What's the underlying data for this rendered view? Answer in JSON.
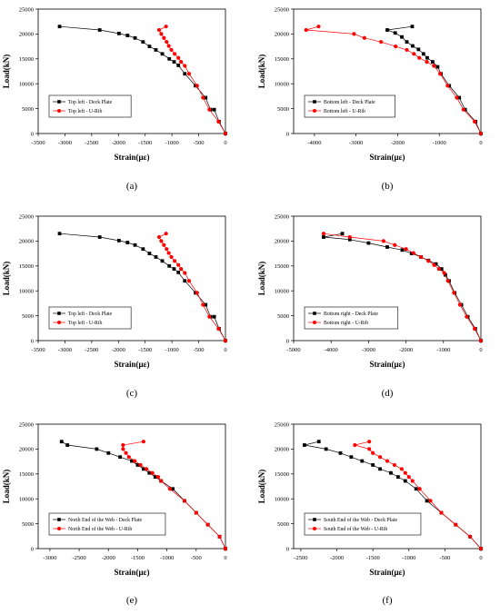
{
  "chart_data": [
    {
      "id": "a",
      "panel_label": "(a)",
      "type": "line",
      "xlabel": "Strain(με)",
      "ylabel": "Load(kN)",
      "xlim": [
        -3500,
        0
      ],
      "ylim": [
        0,
        25000
      ],
      "xticks": [
        -3500,
        -3000,
        -2500,
        -2000,
        -1500,
        -1000,
        -500,
        0
      ],
      "yticks": [
        0,
        5000,
        10000,
        15000,
        20000,
        25000
      ],
      "legend": "middle-left",
      "series": [
        {
          "name": "Top left - Deck Plate",
          "color": "#000000",
          "marker": "square",
          "points": [
            [
              0,
              0
            ],
            [
              -120,
              2400
            ],
            [
              -210,
              4800
            ],
            [
              -280,
              4800
            ],
            [
              -370,
              7200
            ],
            [
              -560,
              9600
            ],
            [
              -760,
              12000
            ],
            [
              -880,
              13700
            ],
            [
              -960,
              14400
            ],
            [
              -1050,
              15000
            ],
            [
              -1180,
              16000
            ],
            [
              -1300,
              16800
            ],
            [
              -1420,
              17500
            ],
            [
              -1540,
              18400
            ],
            [
              -1690,
              19200
            ],
            [
              -1830,
              19700
            ],
            [
              -1990,
              20100
            ],
            [
              -2350,
              20800
            ],
            [
              -3100,
              21500
            ]
          ]
        },
        {
          "name": "Top left - U-Rib",
          "color": "#ff0000",
          "marker": "circle",
          "points": [
            [
              0,
              0
            ],
            [
              -130,
              2400
            ],
            [
              -300,
              4800
            ],
            [
              -420,
              7200
            ],
            [
              -530,
              9600
            ],
            [
              -680,
              12000
            ],
            [
              -760,
              13600
            ],
            [
              -830,
              14400
            ],
            [
              -880,
              15200
            ],
            [
              -950,
              16000
            ],
            [
              -1010,
              16800
            ],
            [
              -1060,
              17600
            ],
            [
              -1100,
              18400
            ],
            [
              -1150,
              19200
            ],
            [
              -1200,
              20000
            ],
            [
              -1240,
              20800
            ],
            [
              -1110,
              21500
            ]
          ]
        }
      ]
    },
    {
      "id": "b",
      "panel_label": "(b)",
      "type": "line",
      "xlabel": "Strain(με)",
      "ylabel": "Load(kN)",
      "xlim": [
        -4500,
        0
      ],
      "ylim": [
        0,
        25000
      ],
      "xticks": [
        -4000,
        -3000,
        -2000,
        -1000,
        0
      ],
      "yticks": [
        0,
        5000,
        10000,
        15000,
        20000,
        25000
      ],
      "legend": "middle-left",
      "series": [
        {
          "name": "Bottom left - Deck Plate",
          "color": "#000000",
          "marker": "square",
          "points": [
            [
              0,
              0
            ],
            [
              -130,
              2400
            ],
            [
              -380,
              4800
            ],
            [
              -520,
              7200
            ],
            [
              -760,
              9600
            ],
            [
              -960,
              12000
            ],
            [
              -1040,
              13400
            ],
            [
              -1160,
              14400
            ],
            [
              -1290,
              15200
            ],
            [
              -1380,
              16000
            ],
            [
              -1500,
              16900
            ],
            [
              -1640,
              17600
            ],
            [
              -1780,
              18400
            ],
            [
              -1900,
              19400
            ],
            [
              -2060,
              20200
            ],
            [
              -2250,
              20800
            ],
            [
              -1650,
              21500
            ]
          ]
        },
        {
          "name": "Bottom left - U-Rib",
          "color": "#ff0000",
          "marker": "circle",
          "points": [
            [
              0,
              0
            ],
            [
              -150,
              2400
            ],
            [
              -420,
              4800
            ],
            [
              -580,
              7200
            ],
            [
              -800,
              9600
            ],
            [
              -980,
              12000
            ],
            [
              -1130,
              13600
            ],
            [
              -1300,
              14400
            ],
            [
              -1480,
              15200
            ],
            [
              -1610,
              16000
            ],
            [
              -1780,
              16800
            ],
            [
              -2050,
              17500
            ],
            [
              -2400,
              18400
            ],
            [
              -2800,
              19200
            ],
            [
              -3050,
              20000
            ],
            [
              -4200,
              20800
            ],
            [
              -3900,
              21500
            ]
          ]
        }
      ]
    },
    {
      "id": "c",
      "panel_label": "(c)",
      "type": "line",
      "xlabel": "Strain(με)",
      "ylabel": "Load(kN)",
      "xlim": [
        -3500,
        0
      ],
      "ylim": [
        0,
        25000
      ],
      "xticks": [
        -3500,
        -3000,
        -2500,
        -2000,
        -1500,
        -1000,
        -500,
        0
      ],
      "yticks": [
        0,
        5000,
        10000,
        15000,
        20000,
        25000
      ],
      "legend": "lower-left",
      "series": [
        {
          "name": "Top left - Deck Plate",
          "color": "#000000",
          "marker": "square",
          "points": [
            [
              0,
              0
            ],
            [
              -120,
              2400
            ],
            [
              -210,
              4800
            ],
            [
              -280,
              4800
            ],
            [
              -370,
              7200
            ],
            [
              -560,
              9600
            ],
            [
              -760,
              12000
            ],
            [
              -880,
              13700
            ],
            [
              -960,
              14400
            ],
            [
              -1050,
              15000
            ],
            [
              -1180,
              16000
            ],
            [
              -1300,
              16800
            ],
            [
              -1420,
              17500
            ],
            [
              -1540,
              18400
            ],
            [
              -1690,
              19200
            ],
            [
              -1830,
              19700
            ],
            [
              -1990,
              20100
            ],
            [
              -2350,
              20800
            ],
            [
              -3100,
              21500
            ]
          ]
        },
        {
          "name": "Top left - U-Rib",
          "color": "#ff0000",
          "marker": "circle",
          "points": [
            [
              0,
              0
            ],
            [
              -130,
              2400
            ],
            [
              -300,
              4800
            ],
            [
              -420,
              7200
            ],
            [
              -530,
              9600
            ],
            [
              -680,
              12000
            ],
            [
              -760,
              13600
            ],
            [
              -830,
              14400
            ],
            [
              -880,
              15200
            ],
            [
              -950,
              16000
            ],
            [
              -1010,
              16800
            ],
            [
              -1060,
              17600
            ],
            [
              -1100,
              18400
            ],
            [
              -1150,
              19200
            ],
            [
              -1200,
              20000
            ],
            [
              -1240,
              20800
            ],
            [
              -1110,
              21500
            ]
          ]
        }
      ]
    },
    {
      "id": "d",
      "panel_label": "(d)",
      "type": "line",
      "xlabel": "Strain(με)",
      "ylabel": "Load(kN)",
      "xlim": [
        -5000,
        0
      ],
      "ylim": [
        0,
        25000
      ],
      "xticks": [
        -5000,
        -4000,
        -3000,
        -2000,
        -1000,
        0
      ],
      "yticks": [
        0,
        5000,
        10000,
        15000,
        20000,
        25000
      ],
      "legend": "lower-left",
      "series": [
        {
          "name": "Bottom right - Deck Plate",
          "color": "#000000",
          "marker": "square",
          "points": [
            [
              0,
              0
            ],
            [
              -150,
              2400
            ],
            [
              -350,
              4800
            ],
            [
              -520,
              7200
            ],
            [
              -700,
              9600
            ],
            [
              -850,
              12000
            ],
            [
              -950,
              13200
            ],
            [
              -1050,
              14400
            ],
            [
              -1200,
              15400
            ],
            [
              -1400,
              16100
            ],
            [
              -1600,
              16800
            ],
            [
              -1850,
              17500
            ],
            [
              -2100,
              18200
            ],
            [
              -2500,
              18800
            ],
            [
              -3000,
              19600
            ],
            [
              -3500,
              20300
            ],
            [
              -4200,
              20800
            ],
            [
              -3700,
              21500
            ]
          ]
        },
        {
          "name": "Bottom right - U-Rib",
          "color": "#ff0000",
          "marker": "circle",
          "points": [
            [
              0,
              0
            ],
            [
              -170,
              2400
            ],
            [
              -380,
              4800
            ],
            [
              -560,
              7200
            ],
            [
              -720,
              9600
            ],
            [
              -880,
              12000
            ],
            [
              -980,
              13600
            ],
            [
              -1120,
              14400
            ],
            [
              -1250,
              15200
            ],
            [
              -1400,
              16000
            ],
            [
              -1600,
              16800
            ],
            [
              -1800,
              17600
            ],
            [
              -2000,
              18400
            ],
            [
              -2300,
              19200
            ],
            [
              -2600,
              20000
            ],
            [
              -3500,
              20800
            ],
            [
              -4200,
              21500
            ]
          ]
        }
      ]
    },
    {
      "id": "e",
      "panel_label": "(e)",
      "type": "line",
      "xlabel": "Strain(με)",
      "ylabel": "Load(kN)",
      "xlim": [
        -3200,
        0
      ],
      "ylim": [
        0,
        25000
      ],
      "xticks": [
        -3000,
        -2500,
        -2000,
        -1500,
        -1000,
        -500,
        0
      ],
      "yticks": [
        0,
        5000,
        10000,
        15000,
        20000,
        25000
      ],
      "legend": "lower-left",
      "series": [
        {
          "name": "North End of the Web - Deck Plate",
          "color": "#000000",
          "marker": "square",
          "points": [
            [
              0,
              0
            ],
            [
              -100,
              2400
            ],
            [
              -300,
              4800
            ],
            [
              -500,
              7200
            ],
            [
              -700,
              9600
            ],
            [
              -900,
              12000
            ],
            [
              -1100,
              13600
            ],
            [
              -1200,
              14400
            ],
            [
              -1300,
              15200
            ],
            [
              -1400,
              16000
            ],
            [
              -1500,
              16800
            ],
            [
              -1600,
              17600
            ],
            [
              -1800,
              18400
            ],
            [
              -2000,
              19200
            ],
            [
              -2200,
              20000
            ],
            [
              -2700,
              20800
            ],
            [
              -2800,
              21500
            ]
          ]
        },
        {
          "name": "North End of the Web - U-Rib",
          "color": "#ff0000",
          "marker": "circle",
          "points": [
            [
              0,
              0
            ],
            [
              -100,
              2400
            ],
            [
              -300,
              4800
            ],
            [
              -500,
              7200
            ],
            [
              -700,
              9600
            ],
            [
              -950,
              12000
            ],
            [
              -1100,
              13600
            ],
            [
              -1150,
              14400
            ],
            [
              -1250,
              15200
            ],
            [
              -1350,
              16000
            ],
            [
              -1450,
              16800
            ],
            [
              -1550,
              17600
            ],
            [
              -1650,
              18400
            ],
            [
              -1700,
              19200
            ],
            [
              -1750,
              20000
            ],
            [
              -1750,
              20800
            ],
            [
              -1400,
              21500
            ]
          ]
        }
      ]
    },
    {
      "id": "f",
      "panel_label": "(f)",
      "type": "line",
      "xlabel": "Strain(με)",
      "ylabel": "Load(kN)",
      "xlim": [
        -2600,
        0
      ],
      "ylim": [
        0,
        25000
      ],
      "xticks": [
        -2500,
        -2000,
        -1500,
        -1000,
        -500,
        0
      ],
      "yticks": [
        0,
        5000,
        10000,
        15000,
        20000,
        25000
      ],
      "legend": "lower-left",
      "series": [
        {
          "name": "South End of the Web - Deck Plate",
          "color": "#000000",
          "marker": "square",
          "points": [
            [
              0,
              0
            ],
            [
              -150,
              2400
            ],
            [
              -350,
              4800
            ],
            [
              -550,
              7200
            ],
            [
              -750,
              9600
            ],
            [
              -900,
              12000
            ],
            [
              -1050,
              13600
            ],
            [
              -1150,
              14400
            ],
            [
              -1250,
              15200
            ],
            [
              -1400,
              16000
            ],
            [
              -1500,
              16800
            ],
            [
              -1650,
              17600
            ],
            [
              -1800,
              18400
            ],
            [
              -1950,
              19200
            ],
            [
              -2150,
              20000
            ],
            [
              -2450,
              20800
            ],
            [
              -2250,
              21500
            ]
          ]
        },
        {
          "name": "South End of the Web - U-Rib",
          "color": "#ff0000",
          "marker": "circle",
          "points": [
            [
              0,
              0
            ],
            [
              -150,
              2400
            ],
            [
              -350,
              4800
            ],
            [
              -550,
              7200
            ],
            [
              -700,
              9600
            ],
            [
              -850,
              12000
            ],
            [
              -950,
              13600
            ],
            [
              -1000,
              14400
            ],
            [
              -1050,
              15200
            ],
            [
              -1100,
              16000
            ],
            [
              -1200,
              16800
            ],
            [
              -1300,
              17600
            ],
            [
              -1400,
              18400
            ],
            [
              -1500,
              19200
            ],
            [
              -1550,
              20000
            ],
            [
              -1750,
              20800
            ],
            [
              -1550,
              21500
            ]
          ]
        }
      ]
    }
  ]
}
